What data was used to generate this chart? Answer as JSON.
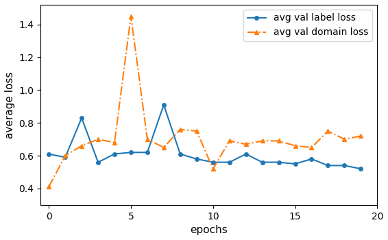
{
  "epochs": [
    0,
    1,
    2,
    3,
    4,
    5,
    6,
    7,
    8,
    9,
    10,
    11,
    12,
    13,
    14,
    15,
    16,
    17,
    18,
    19
  ],
  "label_loss": [
    0.61,
    0.59,
    0.83,
    0.56,
    0.61,
    0.62,
    0.62,
    0.91,
    0.61,
    0.58,
    0.56,
    0.56,
    0.61,
    0.56,
    0.56,
    0.55,
    0.58,
    0.54,
    0.54,
    0.52
  ],
  "domain_loss": [
    0.41,
    0.6,
    0.66,
    0.7,
    0.68,
    1.45,
    0.7,
    0.65,
    0.76,
    0.75,
    0.52,
    0.69,
    0.67,
    0.69,
    0.69,
    0.66,
    0.65,
    0.75,
    0.7,
    0.72
  ],
  "label_color": "#1f77b4",
  "domain_color": "#ff7f0e",
  "label_legend": "avg val label loss",
  "domain_legend": "avg val domain loss",
  "xlabel": "epochs",
  "ylabel": "average loss",
  "xlim": [
    -0.5,
    20
  ],
  "ylim": [
    0.3,
    1.52
  ],
  "yticks": [
    0.4,
    0.6,
    0.8,
    1.0,
    1.2,
    1.4
  ],
  "xticks": [
    0,
    5,
    10,
    15,
    20
  ],
  "figwidth": 5.66,
  "figheight": 3.5,
  "dpi": 100
}
